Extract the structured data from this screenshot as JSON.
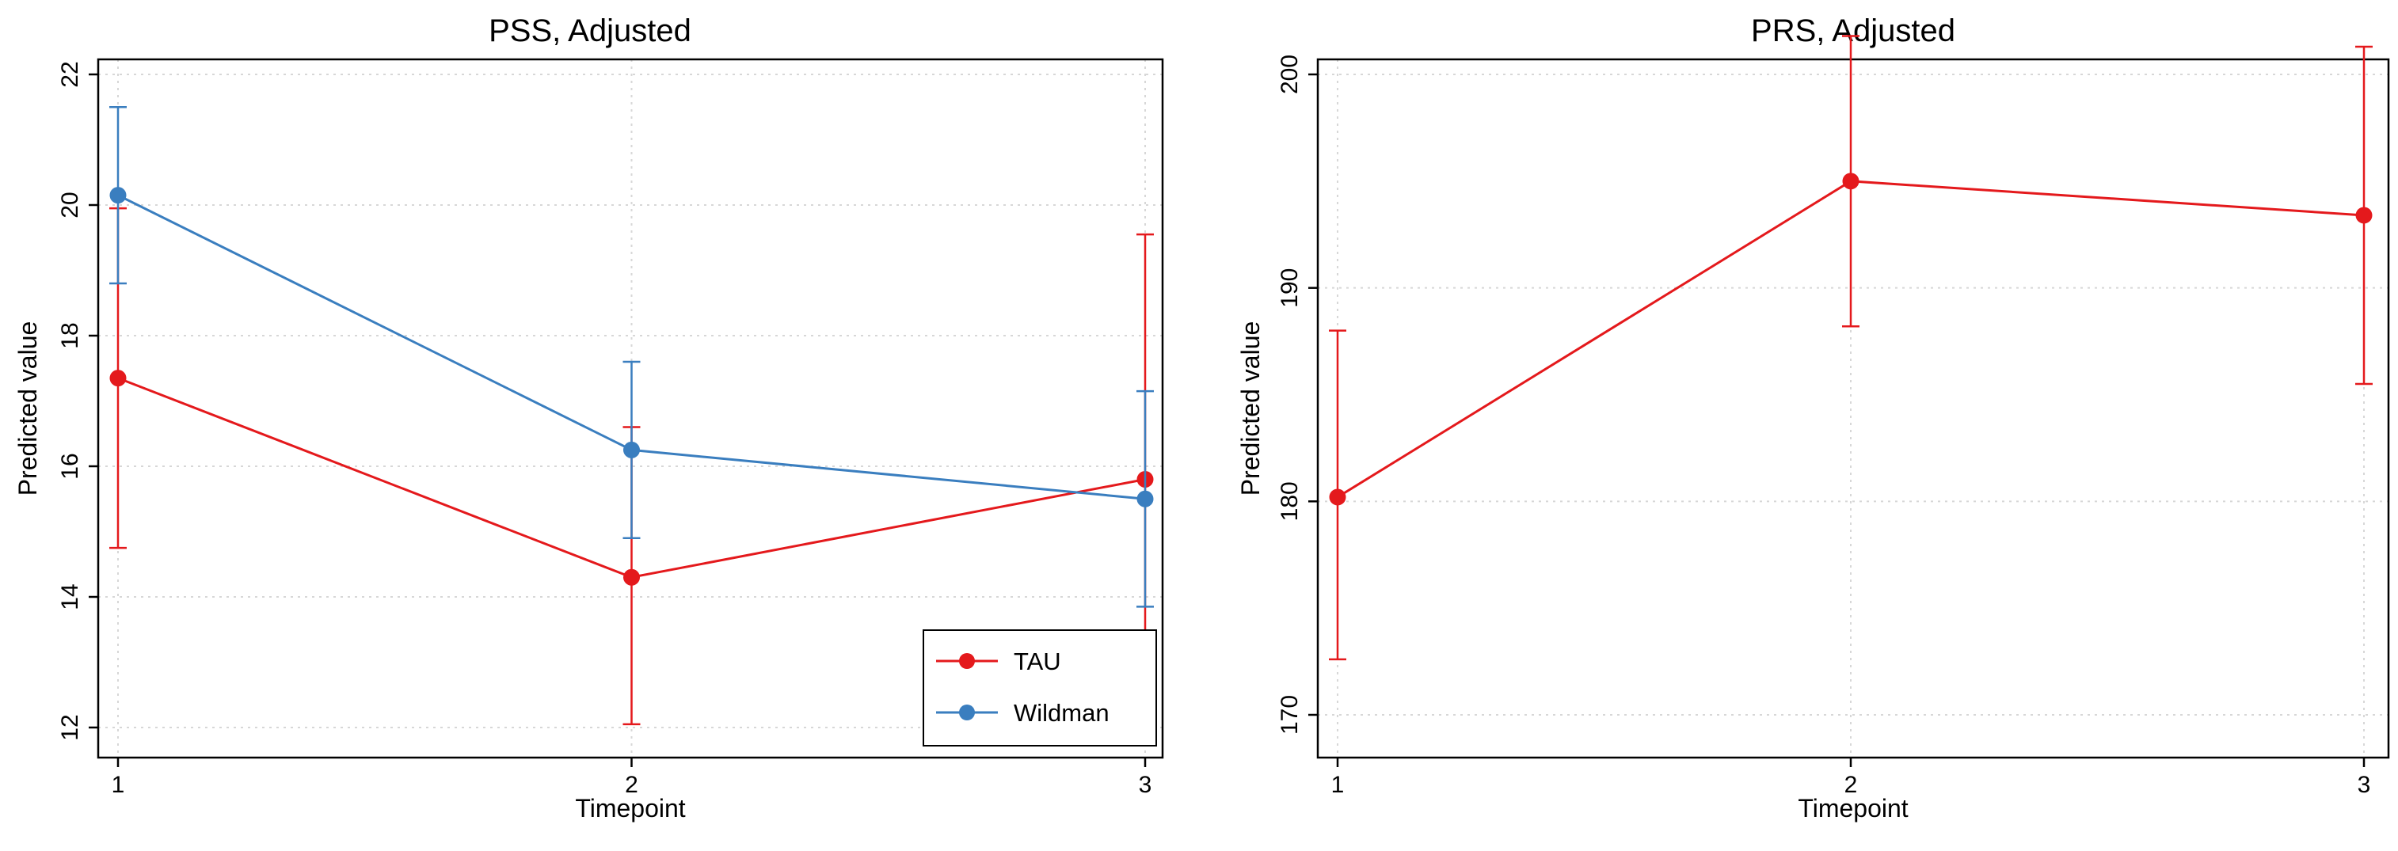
{
  "chart_data": [
    {
      "type": "line",
      "title": "PSS, Adjusted",
      "xlabel": "Timepoint",
      "ylabel": "Predicted value",
      "x": [
        1,
        2,
        3
      ],
      "xlim": [
        1,
        3
      ],
      "ylim": [
        12,
        22
      ],
      "yticks": [
        12,
        14,
        16,
        18,
        20,
        22
      ],
      "grid": true,
      "legend": "bottom-right",
      "series": [
        {
          "name": "TAU",
          "color": "#e4191c",
          "values": [
            17.35,
            14.3,
            15.8
          ],
          "ci_low": [
            14.75,
            12.05,
            12.1
          ],
          "ci_high": [
            19.95,
            16.6,
            19.55
          ]
        },
        {
          "name": "Wildman",
          "color": "#3a7ebf",
          "values": [
            20.15,
            16.25,
            15.5
          ],
          "ci_low": [
            18.8,
            14.9,
            13.85
          ],
          "ci_high": [
            21.5,
            17.6,
            17.15
          ]
        }
      ]
    },
    {
      "type": "line",
      "title": "PRS, Adjusted",
      "xlabel": "Timepoint",
      "ylabel": "Predicted value",
      "x": [
        1,
        2,
        3
      ],
      "xlim": [
        1,
        3
      ],
      "ylim": [
        169.5,
        203.5
      ],
      "yticks": [
        170,
        180,
        190,
        200
      ],
      "grid": true,
      "series": [
        {
          "name": "",
          "color": "#e4191c",
          "values": [
            180.2,
            195.0,
            193.4
          ],
          "ci_low": [
            172.6,
            188.2,
            185.5
          ],
          "ci_high": [
            188.0,
            201.8,
            201.3
          ]
        }
      ]
    }
  ]
}
